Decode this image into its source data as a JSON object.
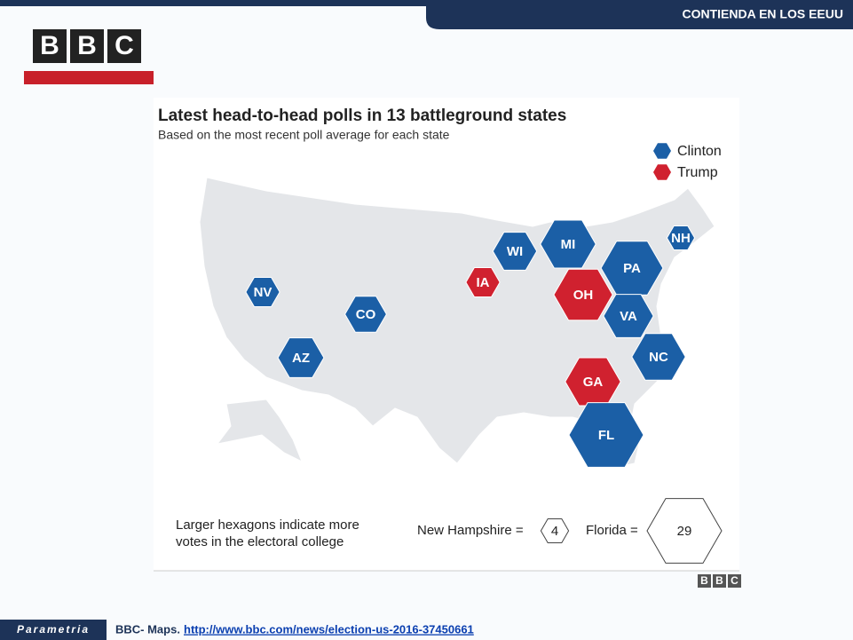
{
  "header": {
    "banner": "CONTIENDA EN LOS EEUU",
    "logo": [
      "B",
      "B",
      "C"
    ]
  },
  "map": {
    "title": "Latest head-to-head polls in 13 battleground states",
    "subtitle": "Based on the most recent poll average for each state",
    "legend": [
      {
        "name": "Clinton",
        "color": "#1b5fa6"
      },
      {
        "name": "Trump",
        "color": "#d0212f"
      }
    ],
    "states": [
      {
        "label": "NV",
        "party": "Clinton",
        "votes": 6
      },
      {
        "label": "CO",
        "party": "Clinton",
        "votes": 9
      },
      {
        "label": "AZ",
        "party": "Clinton",
        "votes": 11
      },
      {
        "label": "IA",
        "party": "Trump",
        "votes": 6
      },
      {
        "label": "WI",
        "party": "Clinton",
        "votes": 10
      },
      {
        "label": "MI",
        "party": "Clinton",
        "votes": 16
      },
      {
        "label": "OH",
        "party": "Trump",
        "votes": 18
      },
      {
        "label": "PA",
        "party": "Clinton",
        "votes": 20
      },
      {
        "label": "VA",
        "party": "Clinton",
        "votes": 13
      },
      {
        "label": "NC",
        "party": "Clinton",
        "votes": 15
      },
      {
        "label": "GA",
        "party": "Trump",
        "votes": 16
      },
      {
        "label": "NH",
        "party": "Clinton",
        "votes": 4
      },
      {
        "label": "FL",
        "party": "Clinton",
        "votes": 29
      }
    ],
    "note": [
      "Larger hexagons indicate more",
      "votes in the electoral college"
    ],
    "scale": [
      {
        "label": "New Hampshire =",
        "value": 4
      },
      {
        "label": "Florida =",
        "value": 29
      }
    ],
    "credit": [
      "B",
      "B",
      "C"
    ]
  },
  "footer": {
    "brand": "Parametria",
    "source": "BBC- Maps.",
    "link": "http://www.bbc.com/news/election-us-2016-37450661"
  }
}
